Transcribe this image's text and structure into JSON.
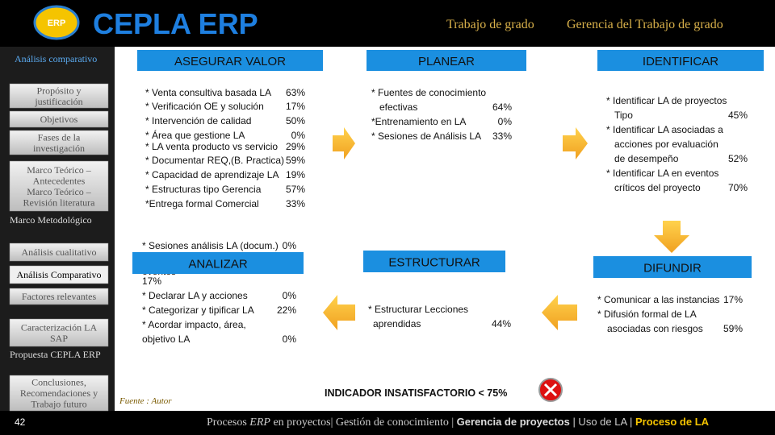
{
  "header": {
    "logo_text": "ERP",
    "brand": "CEPLA ERP",
    "course": "Trabajo de grado",
    "subject": "Gerencia del Trabajo de grado"
  },
  "sidebar": {
    "section": "Análisis comparativo",
    "items": [
      [
        "Propósito y",
        "justificación"
      ],
      [
        "Objetivos"
      ],
      [
        "Fases de la",
        "investigación"
      ],
      [
        "Marco Teórico –",
        "Antecedentes",
        "Marco Teórico –",
        "Revisión literatura"
      ],
      [
        "Marco Metodológico"
      ],
      [
        "Análisis cualitativo"
      ],
      [
        "Análisis Comparativo"
      ],
      [
        "Factores relevantes"
      ],
      [
        "Caracterización LA",
        "SAP"
      ],
      [
        "Propuesta CEPLA ERP"
      ],
      [
        "Conclusiones,",
        "Recomendaciones y",
        "Trabajo futuro"
      ]
    ],
    "page": "42"
  },
  "blocks": [
    {
      "title": "ASEGURAR VALOR",
      "items": [
        {
          "text": [
            "* Venta consultiva basada LA"
          ],
          "value": "63%"
        },
        {
          "text": [
            "* Verificación OE y solución"
          ],
          "value": "17%"
        },
        {
          "text": [
            "* Intervención de calidad"
          ],
          "value": "50%"
        },
        {
          "text": [
            "* Área que gestione LA"
          ],
          "value": "0%"
        },
        {
          "text": [
            "* LA venta producto vs servicio"
          ],
          "value": "29%"
        },
        {
          "text": [
            "* Documentar REQ,(B. Practica)"
          ],
          "value": "59%"
        },
        {
          "text": [
            "* Capacidad de aprendizaje LA"
          ],
          "value": "19%"
        },
        {
          "text": [
            "* Estructuras tipo Gerencia"
          ],
          "value": "57%"
        },
        {
          "text": [
            "*Entrega formal Comercial"
          ],
          "value": "33%"
        }
      ]
    },
    {
      "title": "PLANEAR",
      "items": [
        {
          "text": [
            "* Fuentes de conocimiento",
            "efectivas"
          ],
          "value": "64%"
        },
        {
          "text": [
            "*Entrenamiento en LA"
          ],
          "value": "0%"
        },
        {
          "text": [
            "* Sesiones de Análisis LA"
          ],
          "value": "33%"
        }
      ]
    },
    {
      "title": "IDENTIFICAR",
      "items": [
        {
          "text": [
            "* Identificar LA de proyectos",
            "Tipo"
          ],
          "value": "45%"
        },
        {
          "text": [
            "* Identificar LA asociadas a",
            "acciones por evaluación",
            "de desempeño"
          ],
          "value": "52%"
        },
        {
          "text": [
            "* Identificar LA en eventos",
            "críticos del proyecto"
          ],
          "value": "70%"
        }
      ]
    },
    {
      "title": "ANALIZAR",
      "items": [
        {
          "text": [
            "* Sesiones análisis LA (docum.)"
          ],
          "value": "0%"
        },
        {
          "text": [
            "eventos"
          ],
          "value": "17%"
        },
        {
          "text": [
            "* Declarar LA y acciones"
          ],
          "value": "0%"
        },
        {
          "text": [
            "* Categorizar y tipificar LA"
          ],
          "value": "22%"
        },
        {
          "text": [
            "* Acordar impacto, área,",
            "objetivo LA"
          ],
          "value": "0%"
        }
      ]
    },
    {
      "title": "ESTRUCTURAR",
      "items": [
        {
          "text": [
            "* Estructurar Lecciones",
            "aprendidas"
          ],
          "value": "44%"
        }
      ]
    },
    {
      "title": "DIFUNDIR",
      "items": [
        {
          "text": [
            "* Comunicar a las instancias"
          ],
          "value": "17%"
        },
        {
          "text": [
            "* Difusión formal de LA",
            "asociadas con riesgos"
          ],
          "value": "59%"
        }
      ]
    }
  ],
  "indicator": "INDICADOR  INSATISFACTORIO < 75%",
  "source": "Fuente : Autor",
  "footer": [
    "Procesos ",
    "ERP",
    " en proyectos| Gestión de conocimiento | ",
    "Gerencia de proyectos",
    " | Uso de LA | ",
    "Proceso de LA"
  ]
}
